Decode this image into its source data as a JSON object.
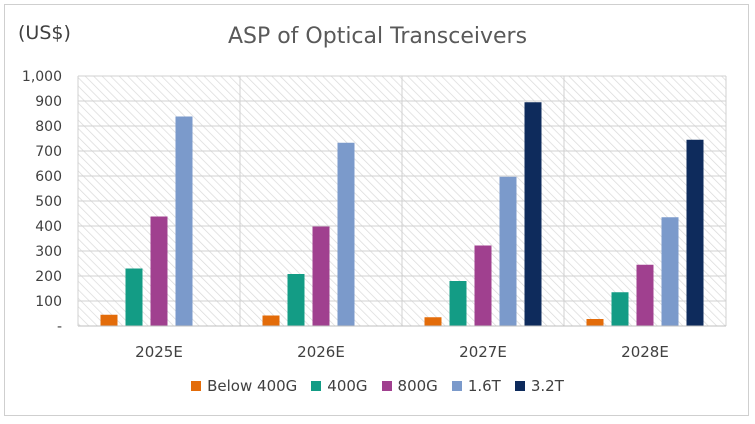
{
  "chart_data": {
    "type": "bar",
    "title": "ASP of Optical Transceivers",
    "unit_label": "(US$)",
    "categories": [
      "2025E",
      "2026E",
      "2027E",
      "2028E"
    ],
    "ylim": [
      0,
      1000
    ],
    "yticks": [
      {
        "value": 0,
        "label": "-"
      },
      {
        "value": 100,
        "label": "100"
      },
      {
        "value": 200,
        "label": "200"
      },
      {
        "value": 300,
        "label": "300"
      },
      {
        "value": 400,
        "label": "400"
      },
      {
        "value": 500,
        "label": "500"
      },
      {
        "value": 600,
        "label": "600"
      },
      {
        "value": 700,
        "label": "700"
      },
      {
        "value": 800,
        "label": "800"
      },
      {
        "value": 900,
        "label": "900"
      },
      {
        "value": 1000,
        "label": "1,000"
      }
    ],
    "series": [
      {
        "name": "Below 400G",
        "color": "#E36C0A",
        "values": [
          45,
          42,
          35,
          28
        ]
      },
      {
        "name": "400G",
        "color": "#139C85",
        "values": [
          230,
          208,
          180,
          135
        ]
      },
      {
        "name": "800G",
        "color": "#A0408F",
        "values": [
          438,
          398,
          322,
          245
        ]
      },
      {
        "name": "1.6T",
        "color": "#7B9ACB",
        "values": [
          838,
          733,
          597,
          435
        ]
      },
      {
        "name": "3.2T",
        "color": "#0E2B5C",
        "values": [
          0,
          0,
          895,
          745
        ]
      }
    ],
    "grid": true,
    "legend": "bottom"
  }
}
